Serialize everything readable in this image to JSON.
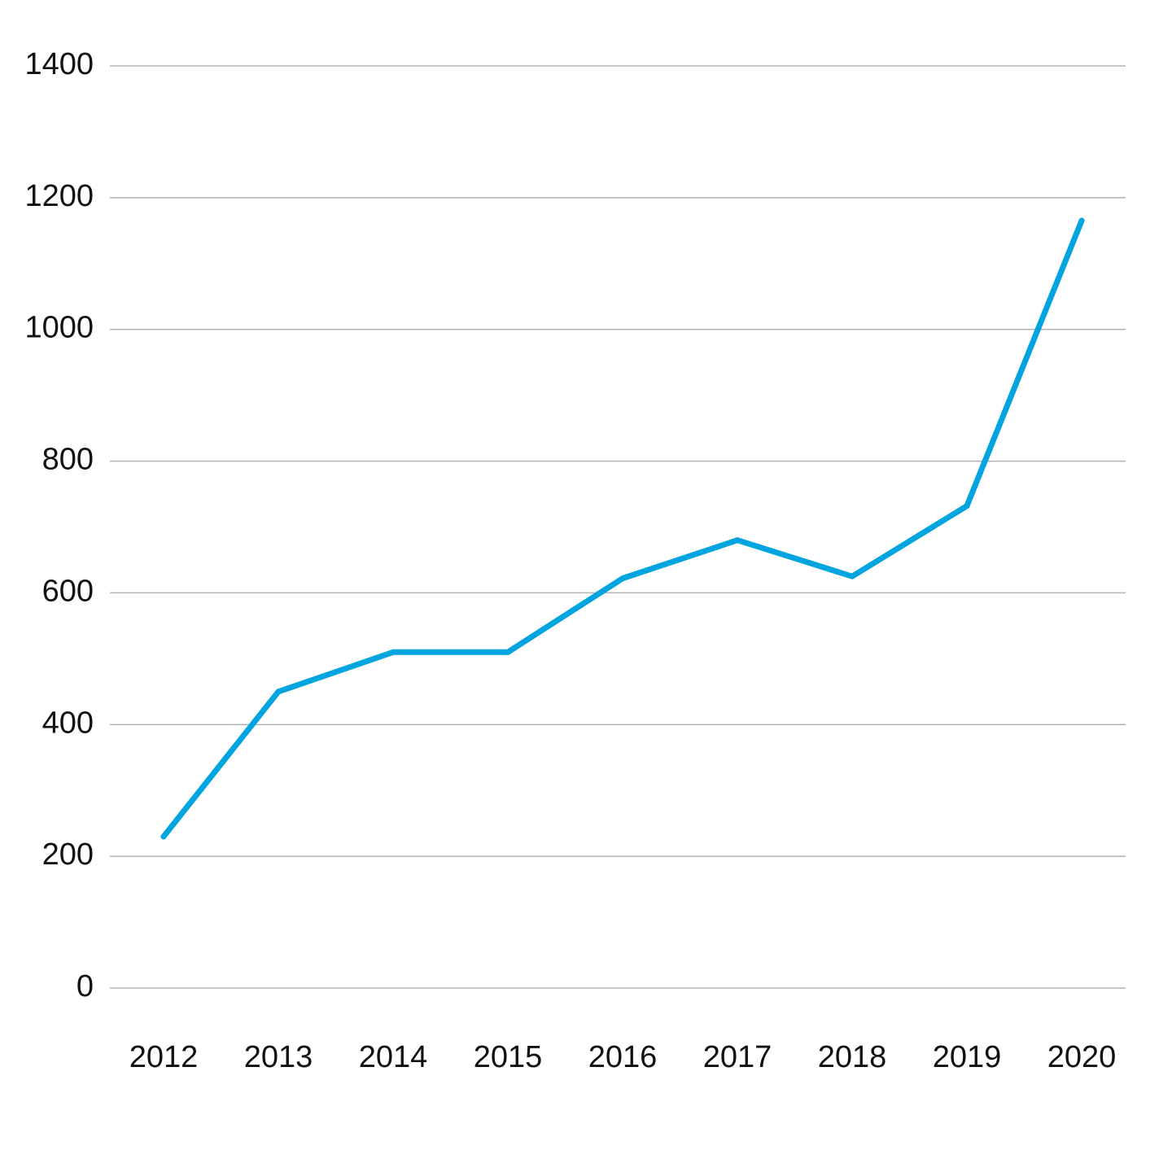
{
  "chart_data": {
    "type": "line",
    "title": "",
    "xlabel": "",
    "ylabel": "",
    "categories": [
      "2012",
      "2013",
      "2014",
      "2015",
      "2016",
      "2017",
      "2018",
      "2019",
      "2020"
    ],
    "series": [
      {
        "values": [
          230,
          450,
          510,
          510,
          622,
          680,
          625,
          732,
          1165
        ],
        "color": "#00a5df"
      }
    ],
    "yticks": [
      0,
      200,
      400,
      600,
      800,
      1000,
      1200,
      1400
    ],
    "ytick_labels": [
      "0",
      "200",
      "400",
      "600",
      "800",
      "1000",
      "1200",
      "1400"
    ],
    "ylim": [
      0,
      1400
    ],
    "grid": "horizontal",
    "legend": "none"
  }
}
